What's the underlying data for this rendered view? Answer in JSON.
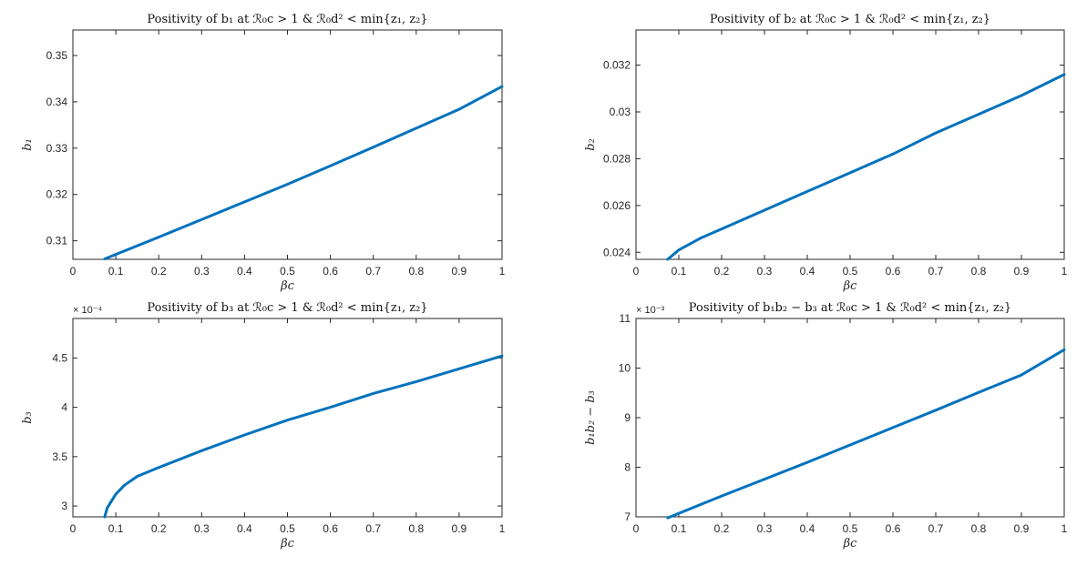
{
  "chart_data": [
    {
      "type": "line",
      "title": "Positivity of b₁ at ℛ₀c > 1 & ℛ₀d² < min{z₁, z₂}",
      "xlabel": "βc",
      "ylabel": "b₁",
      "xlim": [
        0,
        1
      ],
      "ylim": [
        0.306,
        0.3555
      ],
      "xticks": [
        "0",
        "0.1",
        "0.2",
        "0.3",
        "0.4",
        "0.5",
        "0.6",
        "0.7",
        "0.8",
        "0.9",
        "1"
      ],
      "yticks": [
        "0.31",
        "0.32",
        "0.33",
        "0.34",
        "0.35"
      ],
      "ytick_values": [
        0.31,
        0.32,
        0.33,
        0.34,
        0.35
      ],
      "exponent_label": "",
      "grid": false,
      "series": [
        {
          "x": [
            0.074,
            0.2,
            0.3,
            0.4,
            0.5,
            0.6,
            0.7,
            0.8,
            0.9,
            1.0
          ],
          "y": [
            0.3061,
            0.3108,
            0.3146,
            0.3184,
            0.3222,
            0.3262,
            0.3302,
            0.3343,
            0.3384,
            0.3433
          ]
        }
      ]
    },
    {
      "type": "line",
      "title": "Positivity of b₂ at ℛ₀c > 1 & ℛ₀d² < min{z₁, z₂}",
      "xlabel": "βc",
      "ylabel": "b₂",
      "xlim": [
        0,
        1
      ],
      "ylim": [
        0.0237,
        0.0335
      ],
      "xticks": [
        "0",
        "0.1",
        "0.2",
        "0.3",
        "0.4",
        "0.5",
        "0.6",
        "0.7",
        "0.8",
        "0.9",
        "1"
      ],
      "yticks": [
        "0.024",
        "0.026",
        "0.028",
        "0.03",
        "0.032"
      ],
      "ytick_values": [
        0.024,
        0.026,
        0.028,
        0.03,
        0.032
      ],
      "exponent_label": "",
      "grid": false,
      "series": [
        {
          "x": [
            0.074,
            0.1,
            0.15,
            0.2,
            0.3,
            0.4,
            0.5,
            0.6,
            0.7,
            0.8,
            0.9,
            1.0
          ],
          "y": [
            0.0237,
            0.0241,
            0.0246,
            0.025,
            0.0258,
            0.0266,
            0.0274,
            0.0282,
            0.0291,
            0.0299,
            0.0307,
            0.0316
          ]
        }
      ]
    },
    {
      "type": "line",
      "title": "Positivity of b₃ at ℛ₀c > 1 & ℛ₀d² < min{z₁, z₂}",
      "xlabel": "βc",
      "ylabel": "b₃",
      "xlim": [
        0,
        1
      ],
      "ylim": [
        2.89,
        4.9
      ],
      "xticks": [
        "0",
        "0.1",
        "0.2",
        "0.3",
        "0.4",
        "0.5",
        "0.6",
        "0.7",
        "0.8",
        "0.9",
        "1"
      ],
      "yticks": [
        "3",
        "3.5",
        "4",
        "4.5"
      ],
      "ytick_values": [
        3,
        3.5,
        4,
        4.5
      ],
      "exponent_label": "× 10⁻⁴",
      "grid": false,
      "series": [
        {
          "x": [
            0.074,
            0.08,
            0.09,
            0.1,
            0.12,
            0.15,
            0.2,
            0.3,
            0.4,
            0.5,
            0.6,
            0.7,
            0.8,
            0.9,
            1.0
          ],
          "y": [
            2.89,
            2.98,
            3.05,
            3.12,
            3.21,
            3.3,
            3.39,
            3.56,
            3.72,
            3.87,
            4.0,
            4.14,
            4.26,
            4.39,
            4.52
          ]
        }
      ]
    },
    {
      "type": "line",
      "title": "Positivity of b₁b₂ − b₃ at ℛ₀c > 1 & ℛ₀d² < min{z₁, z₂}",
      "xlabel": "βc",
      "ylabel": "b₁b₂ − b₃",
      "xlim": [
        0,
        1
      ],
      "ylim": [
        7,
        11
      ],
      "xticks": [
        "0",
        "0.1",
        "0.2",
        "0.3",
        "0.4",
        "0.5",
        "0.6",
        "0.7",
        "0.8",
        "0.9",
        "1"
      ],
      "yticks": [
        "7",
        "8",
        "9",
        "10",
        "11"
      ],
      "ytick_values": [
        7,
        8,
        9,
        10,
        11
      ],
      "exponent_label": "× 10⁻³",
      "grid": false,
      "series": [
        {
          "x": [
            0.074,
            0.2,
            0.3,
            0.4,
            0.5,
            0.6,
            0.7,
            0.8,
            0.9,
            1.0
          ],
          "y": [
            6.98,
            7.42,
            7.76,
            8.1,
            8.45,
            8.8,
            9.15,
            9.51,
            9.86,
            10.37
          ]
        }
      ]
    }
  ],
  "colors": {
    "series": "#0072bd",
    "axis": "#262626"
  }
}
